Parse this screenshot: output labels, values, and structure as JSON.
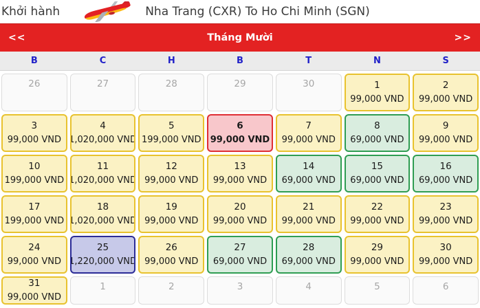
{
  "header": {
    "label": "Khởi hành",
    "route": "Nha Trang (CXR) To Ho Chi Minh (SGN)",
    "logo": "vietjet-airplane-logo"
  },
  "month_nav": {
    "prev_label": "<<",
    "title": "Tháng Mười",
    "next_label": ">>"
  },
  "weekdays": [
    "B",
    "C",
    "H",
    "B",
    "T",
    "N",
    "S"
  ],
  "colors": {
    "nav_bar_red": "#e32222",
    "weekday_blue": "#1f1fc8",
    "standard_fare_bg": "#fbf2c4",
    "standard_fare_border": "#e8c22e",
    "low_fare_bg": "#d9eddf",
    "low_fare_border": "#2f9d52",
    "high_fare_bg": "#c7c9e9",
    "high_fare_border": "#2b2b96",
    "selected_bg": "#f8c7cb",
    "selected_border": "#df2e34"
  },
  "calendar": {
    "cells": [
      {
        "day": "26",
        "price": "",
        "type": "disabled"
      },
      {
        "day": "27",
        "price": "",
        "type": "disabled"
      },
      {
        "day": "28",
        "price": "",
        "type": "disabled"
      },
      {
        "day": "29",
        "price": "",
        "type": "disabled"
      },
      {
        "day": "30",
        "price": "",
        "type": "disabled"
      },
      {
        "day": "1",
        "price": "99,000 VND",
        "type": "standard"
      },
      {
        "day": "2",
        "price": "99,000 VND",
        "type": "standard"
      },
      {
        "day": "3",
        "price": "99,000 VND",
        "type": "standard"
      },
      {
        "day": "4",
        "price": "1,020,000 VND",
        "type": "standard"
      },
      {
        "day": "5",
        "price": "199,000 VND",
        "type": "standard"
      },
      {
        "day": "6",
        "price": "99,000 VND",
        "type": "selected"
      },
      {
        "day": "7",
        "price": "99,000 VND",
        "type": "standard"
      },
      {
        "day": "8",
        "price": "69,000 VND",
        "type": "low"
      },
      {
        "day": "9",
        "price": "99,000 VND",
        "type": "standard"
      },
      {
        "day": "10",
        "price": "199,000 VND",
        "type": "standard"
      },
      {
        "day": "11",
        "price": "1,020,000 VND",
        "type": "standard"
      },
      {
        "day": "12",
        "price": "99,000 VND",
        "type": "standard"
      },
      {
        "day": "13",
        "price": "99,000 VND",
        "type": "standard"
      },
      {
        "day": "14",
        "price": "69,000 VND",
        "type": "low"
      },
      {
        "day": "15",
        "price": "69,000 VND",
        "type": "low"
      },
      {
        "day": "16",
        "price": "69,000 VND",
        "type": "low"
      },
      {
        "day": "17",
        "price": "199,000 VND",
        "type": "standard"
      },
      {
        "day": "18",
        "price": "1,020,000 VND",
        "type": "standard"
      },
      {
        "day": "19",
        "price": "99,000 VND",
        "type": "standard"
      },
      {
        "day": "20",
        "price": "99,000 VND",
        "type": "standard"
      },
      {
        "day": "21",
        "price": "99,000 VND",
        "type": "standard"
      },
      {
        "day": "22",
        "price": "99,000 VND",
        "type": "standard"
      },
      {
        "day": "23",
        "price": "99,000 VND",
        "type": "standard"
      },
      {
        "day": "24",
        "price": "99,000 VND",
        "type": "standard"
      },
      {
        "day": "25",
        "price": "1,220,000 VND",
        "type": "high"
      },
      {
        "day": "26",
        "price": "99,000 VND",
        "type": "standard"
      },
      {
        "day": "27",
        "price": "69,000 VND",
        "type": "low"
      },
      {
        "day": "28",
        "price": "69,000 VND",
        "type": "low"
      },
      {
        "day": "29",
        "price": "99,000 VND",
        "type": "standard"
      },
      {
        "day": "30",
        "price": "99,000 VND",
        "type": "standard"
      },
      {
        "day": "31",
        "price": "99,000 VND",
        "type": "standard"
      },
      {
        "day": "1",
        "price": "",
        "type": "disabled"
      },
      {
        "day": "2",
        "price": "",
        "type": "disabled"
      },
      {
        "day": "3",
        "price": "",
        "type": "disabled"
      },
      {
        "day": "4",
        "price": "",
        "type": "disabled"
      },
      {
        "day": "5",
        "price": "",
        "type": "disabled"
      },
      {
        "day": "6",
        "price": "",
        "type": "disabled"
      }
    ]
  }
}
